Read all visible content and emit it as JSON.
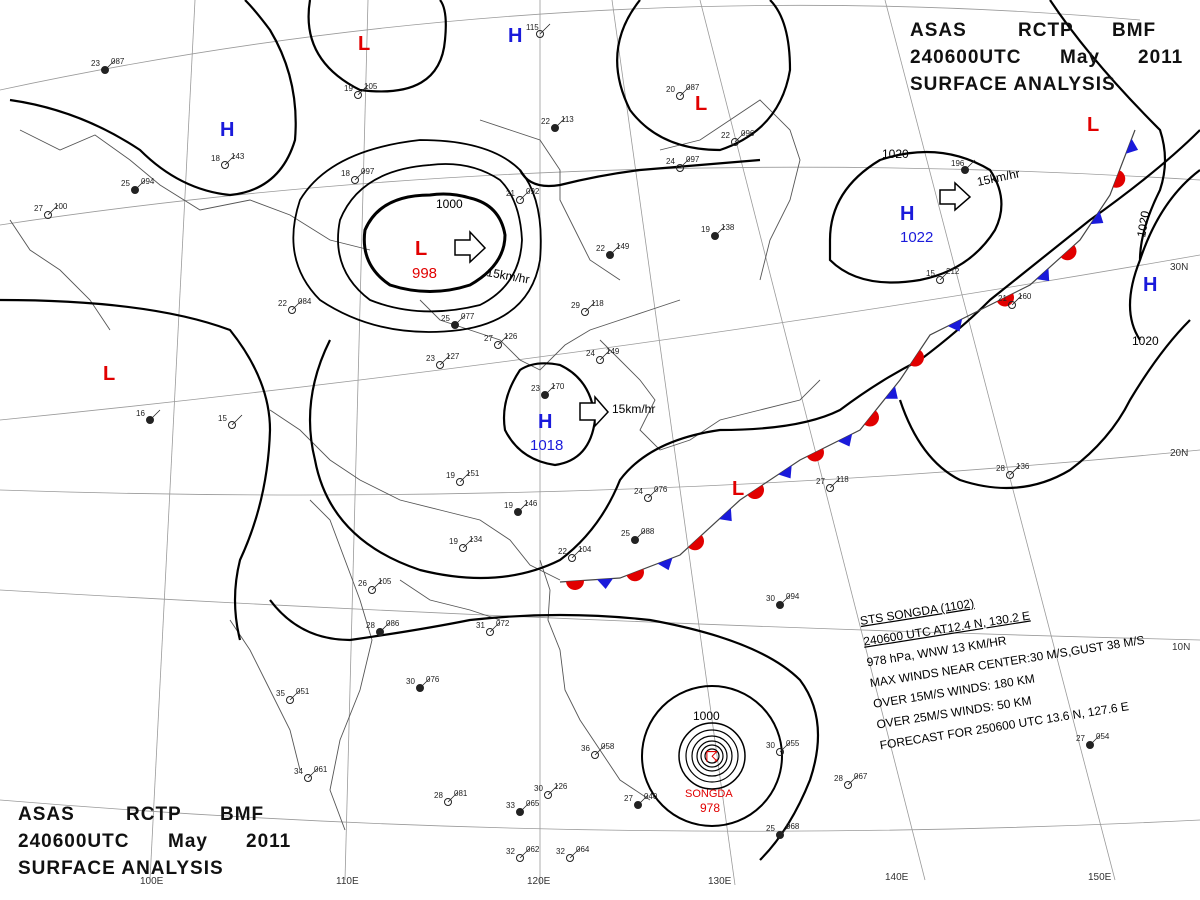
{
  "header_top": {
    "line1": [
      "ASAS",
      "RCTP",
      "BMF"
    ],
    "line2": [
      "240600UTC",
      "May",
      "2011"
    ],
    "line3": "SURFACE  ANALYSIS"
  },
  "header_bottom": {
    "line1": [
      "ASAS",
      "RCTP",
      "BMF"
    ],
    "line2": [
      "240600UTC",
      "May",
      "2011"
    ],
    "line3": "SURFACE  ANALYSIS"
  },
  "longitude_labels": [
    "100E",
    "110E",
    "120E",
    "130E",
    "140E",
    "150E"
  ],
  "latitude_labels": [
    "30N",
    "20N",
    "10N"
  ],
  "pressure_systems": [
    {
      "type": "L",
      "color": "#e10000"
    },
    {
      "type": "H",
      "color": "#1a1adb"
    },
    {
      "type": "L",
      "color": "#e10000",
      "pressure": "998"
    },
    {
      "type": "H",
      "color": "#1a1adb"
    },
    {
      "type": "L",
      "color": "#e10000"
    },
    {
      "type": "L",
      "color": "#e10000"
    },
    {
      "type": "H",
      "color": "#1a1adb",
      "pressure": "1018"
    },
    {
      "type": "H",
      "color": "#1a1adb",
      "pressure": "1022"
    },
    {
      "type": "L",
      "color": "#e10000"
    },
    {
      "type": "H",
      "color": "#1a1adb"
    },
    {
      "type": "L",
      "color": "#e10000"
    }
  ],
  "isobar_labels": [
    "1000",
    "1020",
    "1020",
    "1020",
    "1000"
  ],
  "motion_labels": [
    "15km/hr",
    "15km/hr",
    "15km/hr"
  ],
  "typhoon": {
    "name": "SONGDA",
    "pressure": "978",
    "info": [
      "STS  SONGDA  (1102)",
      "240600 UTC   AT12.4 N, 130.2 E",
      "978 hPa, WNW  13 KM/HR",
      "MAX WINDS NEAR CENTER:30 M/S,GUST 38 M/S",
      "OVER 15M/S WINDS: 180 KM",
      "OVER 25M/S WINDS: 50 KM",
      "FORECAST FOR 250600 UTC 13.6 N, 127.6 E"
    ]
  },
  "colors": {
    "low": "#e10000",
    "high": "#1a1adb",
    "warm_front": "#e10000",
    "cold_front": "#1a1adb"
  },
  "station_plots": [
    [
      "23",
      "087"
    ],
    [
      "19",
      "105"
    ],
    [
      "18",
      "143"
    ],
    [
      "25",
      "094"
    ],
    [
      "27",
      "100"
    ],
    [
      "18",
      "097"
    ],
    [
      "22",
      "113"
    ],
    [
      "24",
      "097"
    ],
    [
      "21",
      "092"
    ],
    [
      "22",
      "149"
    ],
    [
      "29",
      "118"
    ],
    [
      "22",
      "084"
    ],
    [
      "25",
      "077"
    ],
    [
      "27",
      "126"
    ],
    [
      "23",
      "127"
    ],
    [
      "16",
      ""
    ],
    [
      "15",
      ""
    ],
    [
      "19",
      "151"
    ],
    [
      "19",
      "146"
    ],
    [
      "19",
      "134"
    ],
    [
      "24",
      "076"
    ],
    [
      "25",
      "088"
    ],
    [
      "22",
      "104"
    ],
    [
      "26",
      "105"
    ],
    [
      "28",
      "086"
    ],
    [
      "31",
      "072"
    ],
    [
      "35",
      "051"
    ],
    [
      "30",
      "076"
    ],
    [
      "34",
      "061"
    ],
    [
      "28",
      "081"
    ],
    [
      "33",
      "065"
    ],
    [
      "32",
      "062"
    ],
    [
      "32",
      "064"
    ],
    [
      "25",
      "068"
    ],
    [
      "28",
      "067"
    ],
    [
      "30",
      "055"
    ],
    [
      "30",
      "094"
    ],
    [
      "27",
      "118"
    ],
    [
      "28",
      "136"
    ],
    [
      "27",
      "054"
    ],
    [
      "15",
      "212"
    ],
    [
      "21",
      "160"
    ],
    [
      "19",
      "138"
    ],
    [
      "22",
      "096"
    ],
    [
      "20",
      "087"
    ],
    [
      "27",
      "040"
    ],
    [
      "36",
      "058"
    ],
    [
      "30",
      "126"
    ],
    [
      "23",
      "170"
    ],
    [
      "24",
      "149"
    ],
    [
      "115",
      ""
    ],
    [
      "196",
      ""
    ]
  ]
}
